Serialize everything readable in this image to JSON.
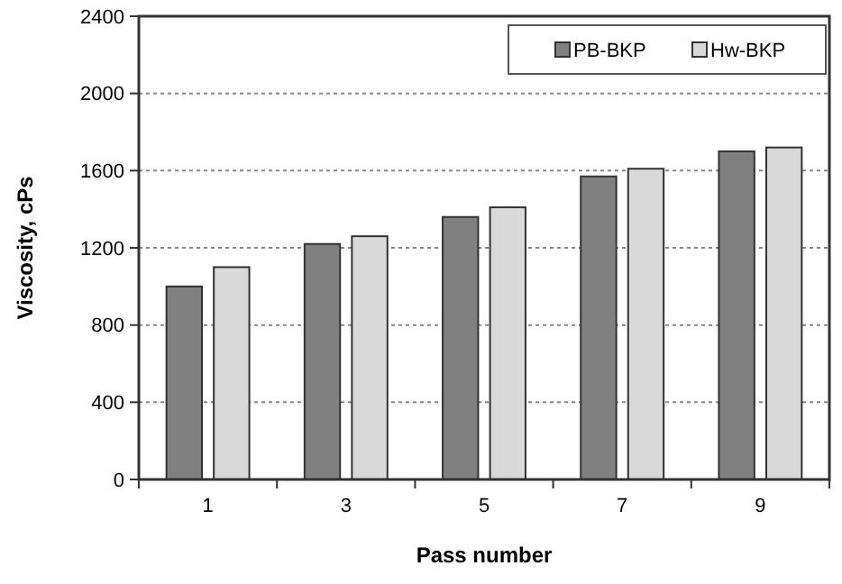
{
  "chart_data": {
    "type": "bar",
    "xlabel": "Pass number",
    "ylabel": "Viscosity, cPs",
    "categories": [
      "1",
      "3",
      "5",
      "7",
      "9"
    ],
    "series": [
      {
        "name": "PB-BKP",
        "color": "#808080",
        "values": [
          1000,
          1220,
          1360,
          1570,
          1700
        ]
      },
      {
        "name": "Hw-BKP",
        "color": "#d9d9d9",
        "values": [
          1100,
          1260,
          1410,
          1610,
          1720
        ]
      }
    ],
    "ylim": [
      0,
      2400
    ],
    "yticks": [
      0,
      400,
      800,
      1200,
      1600,
      2000,
      2400
    ],
    "grid": "y",
    "legend": "top right"
  }
}
